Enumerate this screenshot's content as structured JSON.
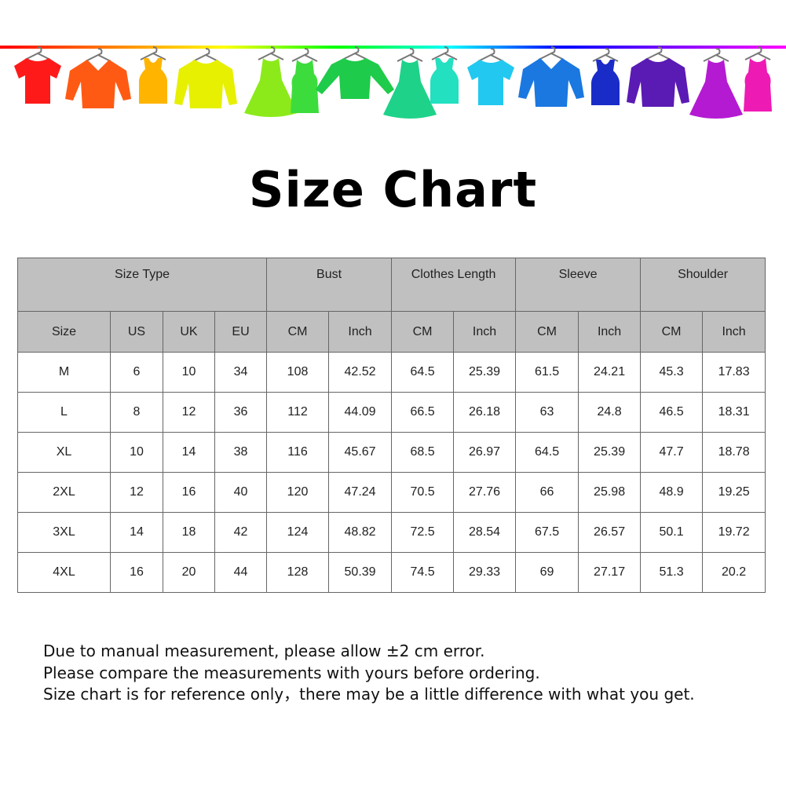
{
  "banner": {
    "rainbow_colors": [
      "#ff0000",
      "#ff8000",
      "#ffff00",
      "#00ff00",
      "#00ffff",
      "#0000ff",
      "#8000ff",
      "#ff00ff"
    ],
    "garments": [
      {
        "icon": "t-shirt-icon",
        "color": "#ff1a1a"
      },
      {
        "icon": "shirt-icon",
        "color": "#ff5a14"
      },
      {
        "icon": "tank-top-icon",
        "color": "#ffb400"
      },
      {
        "icon": "sweater-icon",
        "color": "#e6f000"
      },
      {
        "icon": "dress-icon",
        "color": "#8cea1a"
      },
      {
        "icon": "tank-dress-icon",
        "color": "#3ddc3d"
      },
      {
        "icon": "long-sleeve-icon",
        "color": "#1ecb4a"
      },
      {
        "icon": "dress-icon",
        "color": "#1ed28a"
      },
      {
        "icon": "tank-top-icon",
        "color": "#22e0c0"
      },
      {
        "icon": "t-shirt-icon",
        "color": "#22c8f0"
      },
      {
        "icon": "shirt-icon",
        "color": "#1a78e0"
      },
      {
        "icon": "tank-top-icon",
        "color": "#1a2cc8"
      },
      {
        "icon": "sweater-icon",
        "color": "#5a1ab4"
      },
      {
        "icon": "dress-icon",
        "color": "#b41ad2"
      },
      {
        "icon": "tank-dress-icon",
        "color": "#ee1ab4"
      }
    ]
  },
  "title": "Size Chart",
  "table": {
    "group_headers": [
      "Size Type",
      "Bust",
      "Clothes Length",
      "Sleeve",
      "Shoulder"
    ],
    "sub_headers": [
      "Size",
      "US",
      "UK",
      "EU",
      "CM",
      "Inch",
      "CM",
      "Inch",
      "CM",
      "Inch",
      "CM",
      "Inch"
    ],
    "rows": [
      [
        "M",
        "6",
        "10",
        "34",
        "108",
        "42.52",
        "64.5",
        "25.39",
        "61.5",
        "24.21",
        "45.3",
        "17.83"
      ],
      [
        "L",
        "8",
        "12",
        "36",
        "112",
        "44.09",
        "66.5",
        "26.18",
        "63",
        "24.8",
        "46.5",
        "18.31"
      ],
      [
        "XL",
        "10",
        "14",
        "38",
        "116",
        "45.67",
        "68.5",
        "26.97",
        "64.5",
        "25.39",
        "47.7",
        "18.78"
      ],
      [
        "2XL",
        "12",
        "16",
        "40",
        "120",
        "47.24",
        "70.5",
        "27.76",
        "66",
        "25.98",
        "48.9",
        "19.25"
      ],
      [
        "3XL",
        "14",
        "18",
        "42",
        "124",
        "48.82",
        "72.5",
        "28.54",
        "67.5",
        "26.57",
        "50.1",
        "19.72"
      ],
      [
        "4XL",
        "16",
        "20",
        "44",
        "128",
        "50.39",
        "74.5",
        "29.33",
        "69",
        "27.17",
        "51.3",
        "20.2"
      ]
    ]
  },
  "notes": [
    "Due to manual measurement, please allow ±2 cm error.",
    "Please compare the measurements with yours before ordering.",
    "Size chart is for reference only，there may be a little difference with what you get."
  ]
}
